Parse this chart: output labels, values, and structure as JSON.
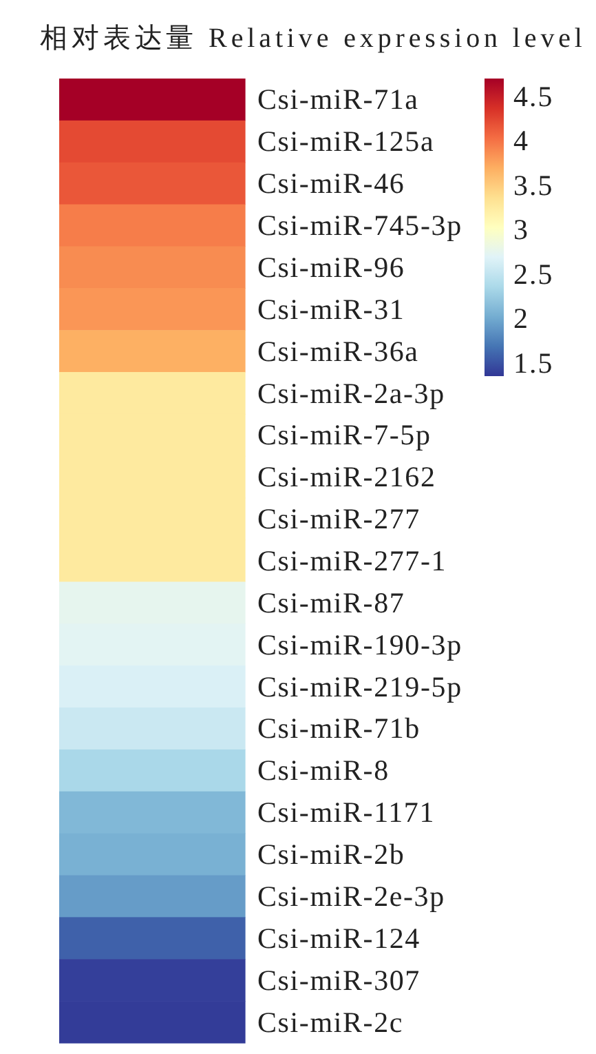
{
  "chart_data": {
    "type": "heatmap",
    "title": "相对表达量 Relative expression level",
    "categories": [
      null
    ],
    "y_categories": [
      "Csi-miR-71a",
      "Csi-miR-125a",
      "Csi-miR-46",
      "Csi-miR-745-3p",
      "Csi-miR-96",
      "Csi-miR-31",
      "Csi-miR-36a",
      "Csi-miR-2a-3p",
      "Csi-miR-7-5p",
      "Csi-miR-2162",
      "Csi-miR-277",
      "Csi-miR-277-1",
      "Csi-miR-87",
      "Csi-miR-190-3p",
      "Csi-miR-219-5p",
      "Csi-miR-71b",
      "Csi-miR-8",
      "Csi-miR-1171",
      "Csi-miR-2b",
      "Csi-miR-2e-3p",
      "Csi-miR-124",
      "Csi-miR-307",
      "Csi-miR-2c"
    ],
    "cells": [
      [
        4.7
      ],
      [
        4.22
      ],
      [
        4.15
      ],
      [
        3.95
      ],
      [
        3.87
      ],
      [
        3.82
      ],
      [
        3.68
      ],
      [
        3.25
      ],
      [
        3.25
      ],
      [
        3.25
      ],
      [
        3.25
      ],
      [
        3.25
      ],
      [
        2.75
      ],
      [
        2.72
      ],
      [
        2.65
      ],
      [
        2.55
      ],
      [
        2.35
      ],
      [
        2.1
      ],
      [
        2.05
      ],
      [
        1.92
      ],
      [
        1.58
      ],
      [
        1.4
      ],
      [
        1.38
      ]
    ],
    "clim": [
      1.35,
      4.7
    ],
    "cticks": [
      {
        "value": 4.5,
        "label": "4.5"
      },
      {
        "value": 4,
        "label": "4"
      },
      {
        "value": 3.5,
        "label": "3.5"
      },
      {
        "value": 3,
        "label": "3"
      },
      {
        "value": 2.5,
        "label": "2.5"
      },
      {
        "value": 2,
        "label": "2"
      },
      {
        "value": 1.5,
        "label": "1.5"
      }
    ]
  }
}
